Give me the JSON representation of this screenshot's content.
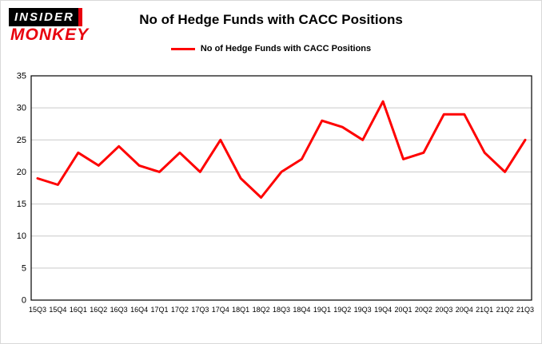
{
  "logo": {
    "line1": "INSIDER",
    "line2": "MONKEY"
  },
  "header": {
    "title": "No of Hedge Funds with CACC Positions"
  },
  "legend": {
    "label": "No of Hedge Funds with CACC Positions",
    "color": "#fe0000"
  },
  "colors": {
    "line": "#fe0000",
    "grid": "#c9c9c9",
    "axis": "#000000",
    "background": "#ffffff",
    "logo_red": "#e8000d"
  },
  "chart_data": {
    "type": "line",
    "title": "No of Hedge Funds with CACC Positions",
    "xlabel": "",
    "ylabel": "",
    "ylim": [
      0,
      35
    ],
    "yticks": [
      0,
      5,
      10,
      15,
      20,
      25,
      30,
      35
    ],
    "grid": true,
    "legend_position": "top-center",
    "categories": [
      "15Q3",
      "15Q4",
      "16Q1",
      "16Q2",
      "16Q3",
      "16Q4",
      "17Q1",
      "17Q2",
      "17Q3",
      "17Q4",
      "18Q1",
      "18Q2",
      "18Q3",
      "18Q4",
      "19Q1",
      "19Q2",
      "19Q3",
      "19Q4",
      "20Q1",
      "20Q2",
      "20Q3",
      "20Q4",
      "21Q1",
      "21Q2",
      "21Q3"
    ],
    "series": [
      {
        "name": "No of Hedge Funds with CACC Positions",
        "color": "#fe0000",
        "values": [
          19,
          18,
          23,
          21,
          24,
          21,
          20,
          23,
          20,
          25,
          19,
          16,
          20,
          22,
          28,
          27,
          25,
          31,
          22,
          23,
          29,
          29,
          23,
          20,
          25
        ]
      }
    ]
  }
}
